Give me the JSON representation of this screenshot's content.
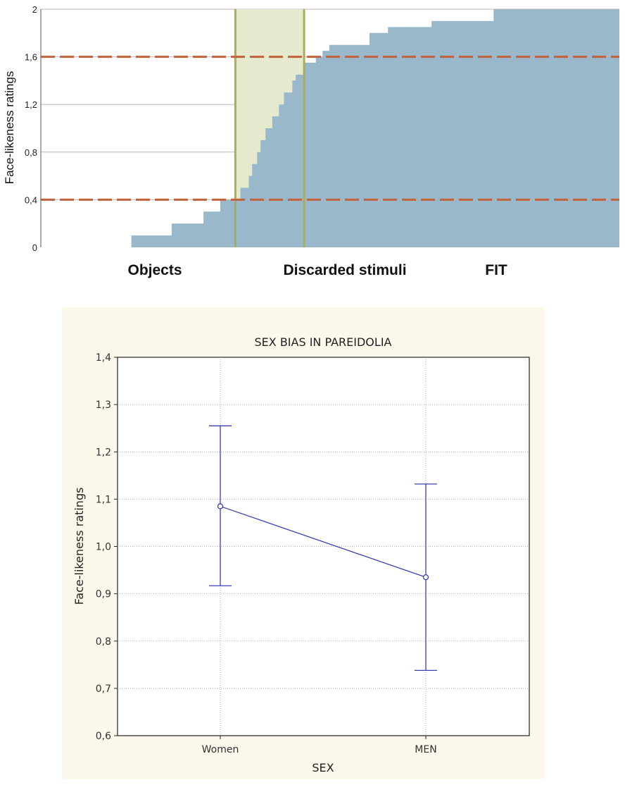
{
  "chart_data": [
    {
      "type": "area",
      "title": "",
      "ylabel": "Face-likeness ratings",
      "xlabel": "",
      "ylim": [
        0,
        2
      ],
      "yticks": [
        "0",
        "0,4",
        "0,8",
        "1,2",
        "1,6",
        "2"
      ],
      "ytick_values": [
        0,
        0.4,
        0.8,
        1.2,
        1.6,
        2.0
      ],
      "categories": [
        "Objects",
        "Discarded stimuli",
        "FIT"
      ],
      "thresholds": [
        0.4,
        1.6
      ],
      "step_x": [
        0,
        54,
        54,
        78,
        78,
        97,
        97,
        107,
        107,
        119,
        119,
        124,
        124,
        126,
        126,
        129,
        129,
        131,
        131,
        134,
        134,
        138,
        138,
        142,
        142,
        145,
        145,
        150,
        150,
        152,
        152,
        157,
        157,
        164,
        164,
        168,
        168,
        172,
        172,
        182,
        182,
        196,
        196,
        207,
        207,
        214,
        214,
        233,
        233,
        250,
        250,
        270,
        270,
        292,
        292,
        320,
        320,
        330,
        330,
        345
      ],
      "step_y": [
        0,
        0,
        0.1,
        0.1,
        0.2,
        0.2,
        0.3,
        0.3,
        0.4,
        0.4,
        0.5,
        0.5,
        0.6,
        0.6,
        0.7,
        0.7,
        0.8,
        0.8,
        0.9,
        0.9,
        1.0,
        1.0,
        1.1,
        1.1,
        1.2,
        1.2,
        1.3,
        1.3,
        1.4,
        1.4,
        1.45,
        1.45,
        1.55,
        1.55,
        1.6,
        1.6,
        1.65,
        1.65,
        1.7,
        1.7,
        1.7,
        1.7,
        1.8,
        1.8,
        1.85,
        1.85,
        1.85,
        1.85,
        1.9,
        1.9,
        1.9,
        1.9,
        2.0,
        2.0,
        2.0,
        2.0,
        2.0,
        2.0,
        2.0,
        2.0
      ],
      "discard_range": [
        116,
        157
      ],
      "colors": {
        "fill": "#99b8cc",
        "discard_band": "#e9eedb",
        "discard_border": "#a9ad55",
        "threshold": "#c1623a",
        "grid": "#c6b3c2"
      }
    },
    {
      "type": "line",
      "title": "SEX BIAS IN PAREIDOLIA",
      "xlabel": "SEX",
      "ylabel": "Face-likeness ratings",
      "categories": [
        "Women",
        "MEN"
      ],
      "values": [
        1.085,
        0.935
      ],
      "error_low": [
        0.917,
        0.738
      ],
      "error_high": [
        1.255,
        1.132
      ],
      "ylim": [
        0.6,
        1.4
      ],
      "yticks": [
        "0,6",
        "0,7",
        "0,8",
        "0,9",
        "1,0",
        "1,1",
        "1,2",
        "1,3",
        "1,4"
      ],
      "ytick_values": [
        0.6,
        0.7,
        0.8,
        0.9,
        1.0,
        1.1,
        1.2,
        1.3,
        1.4
      ],
      "grid": true,
      "colors": {
        "line": "#3a3fb0",
        "background": "#fcf8ec",
        "plot": "#ffffff"
      }
    }
  ]
}
